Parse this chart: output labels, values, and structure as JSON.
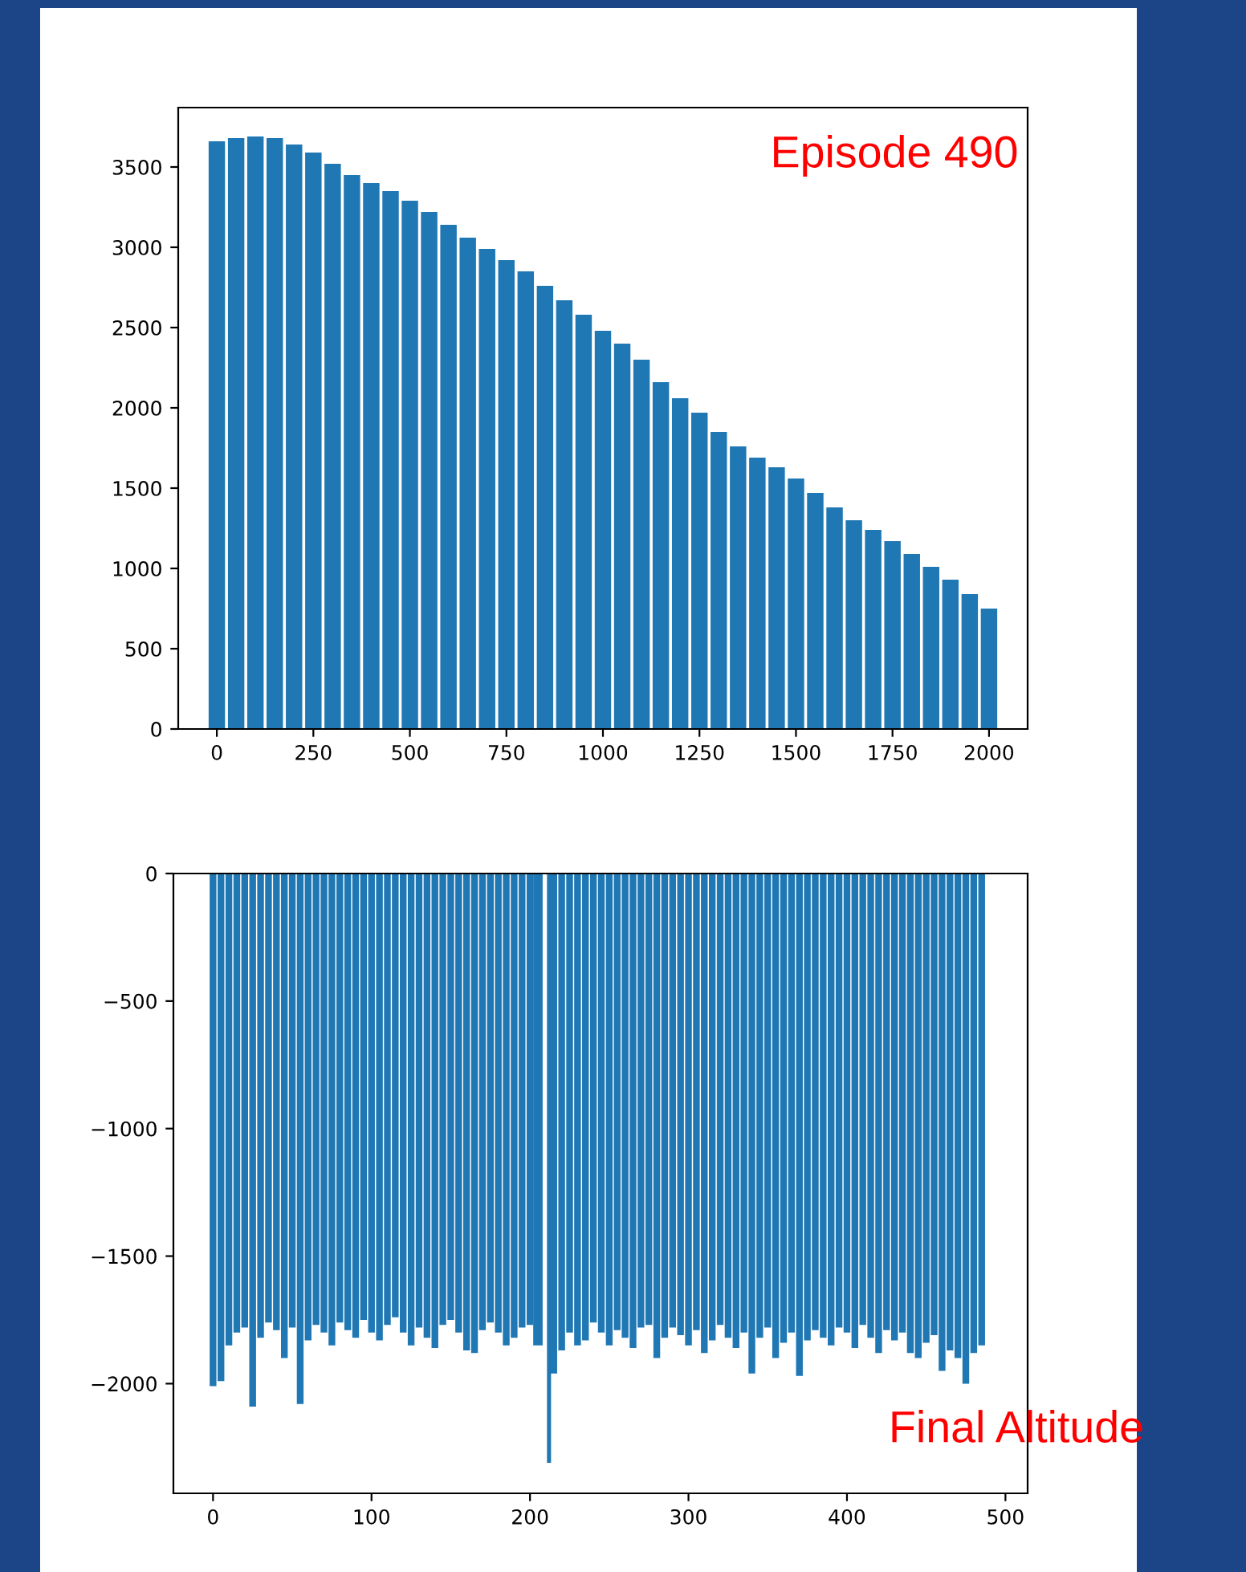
{
  "chart_data": [
    {
      "type": "bar",
      "annotations": [
        "Episode 490"
      ],
      "x": [
        0,
        50,
        100,
        150,
        200,
        250,
        300,
        350,
        400,
        450,
        500,
        550,
        600,
        650,
        700,
        750,
        800,
        850,
        900,
        950,
        1000,
        1050,
        1100,
        1150,
        1200,
        1250,
        1300,
        1350,
        1400,
        1450,
        1500,
        1550,
        1600,
        1650,
        1700,
        1750,
        1800,
        1850,
        1900,
        1950,
        2000
      ],
      "values": [
        3660,
        3680,
        3690,
        3680,
        3640,
        3590,
        3520,
        3450,
        3400,
        3350,
        3290,
        3220,
        3140,
        3060,
        2990,
        2920,
        2850,
        2760,
        2670,
        2580,
        2480,
        2400,
        2300,
        2160,
        2060,
        1970,
        1850,
        1760,
        1690,
        1630,
        1560,
        1470,
        1380,
        1300,
        1240,
        1170,
        1090,
        1010,
        930,
        840,
        750
      ],
      "color": "#1f77b4",
      "xlim": [
        -100,
        2100
      ],
      "ylim": [
        0,
        3870
      ],
      "xticks": [
        0,
        250,
        500,
        750,
        1000,
        1250,
        1500,
        1750,
        2000
      ],
      "yticks": [
        0,
        500,
        1000,
        1500,
        2000,
        2500,
        3000,
        3500
      ],
      "grid": false,
      "legend": false
    },
    {
      "type": "bar",
      "annotations": [
        "Final Altitude"
      ],
      "x": [
        0,
        5,
        10,
        15,
        20,
        25,
        30,
        35,
        40,
        45,
        50,
        55,
        60,
        65,
        70,
        75,
        80,
        85,
        90,
        95,
        100,
        105,
        110,
        115,
        120,
        125,
        130,
        135,
        140,
        145,
        150,
        155,
        160,
        165,
        170,
        175,
        180,
        185,
        190,
        195,
        200,
        205,
        212,
        215,
        220,
        225,
        230,
        235,
        240,
        245,
        250,
        255,
        260,
        265,
        270,
        275,
        280,
        285,
        290,
        295,
        300,
        305,
        310,
        315,
        320,
        325,
        330,
        335,
        340,
        345,
        350,
        355,
        360,
        365,
        370,
        375,
        380,
        385,
        390,
        395,
        400,
        405,
        410,
        415,
        420,
        425,
        430,
        435,
        440,
        445,
        450,
        455,
        460,
        465,
        470,
        475,
        480,
        485
      ],
      "values": [
        -2010,
        -1990,
        -1850,
        -1800,
        -1780,
        -2090,
        -1820,
        -1760,
        -1790,
        -1900,
        -1780,
        -2080,
        -1830,
        -1770,
        -1800,
        -1850,
        -1760,
        -1790,
        -1820,
        -1750,
        -1800,
        -1830,
        -1770,
        -1740,
        -1800,
        -1850,
        -1780,
        -1820,
        -1860,
        -1770,
        -1750,
        -1800,
        -1870,
        -1880,
        -1790,
        -1760,
        -1800,
        -1850,
        -1820,
        -1780,
        -1770,
        -1850,
        -2310,
        -1960,
        -1870,
        -1800,
        -1850,
        -1830,
        -1760,
        -1800,
        -1850,
        -1790,
        -1820,
        -1860,
        -1780,
        -1770,
        -1900,
        -1820,
        -1780,
        -1810,
        -1850,
        -1790,
        -1880,
        -1830,
        -1770,
        -1820,
        -1860,
        -1800,
        -1960,
        -1820,
        -1780,
        -1900,
        -1840,
        -1800,
        -1970,
        -1830,
        -1790,
        -1820,
        -1850,
        -1780,
        -1800,
        -1860,
        -1770,
        -1820,
        -1880,
        -1790,
        -1830,
        -1800,
        -1880,
        -1900,
        -1840,
        -1810,
        -1950,
        -1870,
        -1900,
        -2000,
        -1880,
        -1850
      ],
      "color": "#1f77b4",
      "xlim": [
        -25,
        514
      ],
      "ylim": [
        -2430,
        0
      ],
      "xticks": [
        0,
        100,
        200,
        300,
        400,
        500
      ],
      "yticks": [
        {
          "value": -2000,
          "label": "−2000"
        },
        {
          "value": -1500,
          "label": "−1500"
        },
        {
          "value": -1000,
          "label": "−1000"
        },
        {
          "value": -500,
          "label": "−500"
        },
        0
      ],
      "grid": false,
      "legend": false
    }
  ]
}
